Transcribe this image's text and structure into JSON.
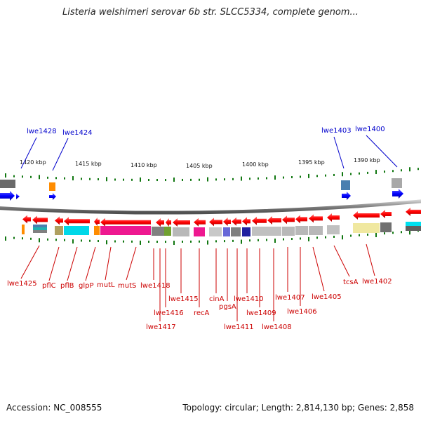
{
  "title": "Listeria welshimeri serovar 6b str. SLCC5334, complete genom...",
  "accession": "Accession: NC_008555",
  "summary": "Topology: circular; Length: 2,814,130 bp; Genes: 2,858",
  "kbp_labels": [
    "1420 kbp",
    "1415 kbp",
    "1410 kbp",
    "1405 kbp",
    "1400 kbp",
    "1395 kbp",
    "1390 kbp"
  ],
  "top_genes": [
    "lwe1428",
    "lwe1424",
    "lwe1403",
    "lwe1400"
  ],
  "bottom_genes": [
    "lwe1425",
    "pflC",
    "pflB",
    "glpP",
    "mutL",
    "mutS",
    "lwe1418",
    "lwe1417",
    "lwe1416",
    "lwe1415",
    "recA",
    "cinA",
    "pgsA",
    "lwe1411",
    "lwe1410",
    "lwe1409",
    "lwe1408",
    "lwe1407",
    "lwe1406",
    "lwe1405",
    "tcsA",
    "lwe1402"
  ],
  "colors": {
    "forward_strand": "#0000ff",
    "reverse_strand": "#ff0000",
    "top_label": "#0000cc",
    "bottom_label": "#cc0000",
    "backbone": "#808080",
    "ticks": "#117711"
  }
}
